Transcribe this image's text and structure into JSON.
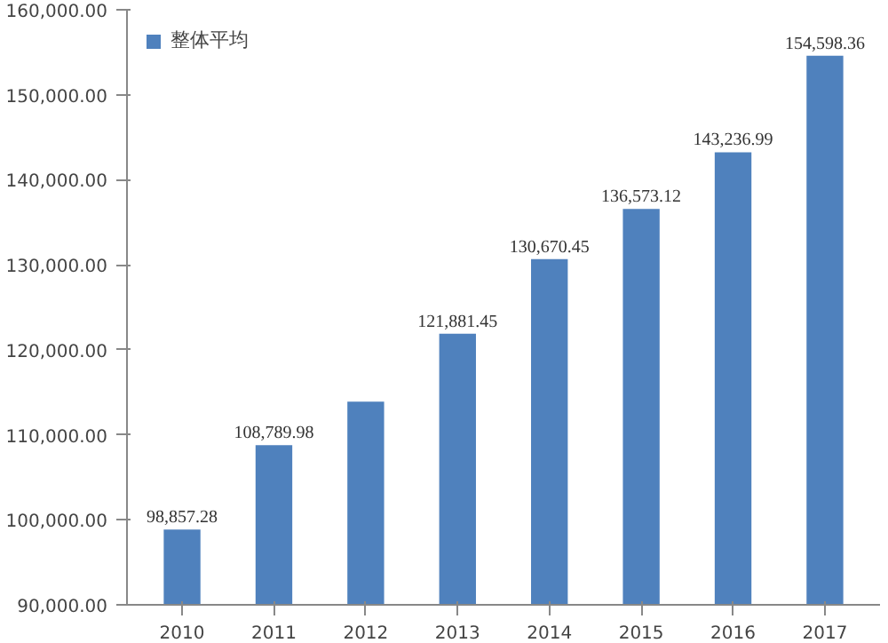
{
  "chart_data": {
    "type": "bar",
    "categories": [
      "2010",
      "2011",
      "2012",
      "2013",
      "2014",
      "2015",
      "2016",
      "2017"
    ],
    "series": [
      {
        "name": "整体平均",
        "color": "#4f81bd",
        "values": [
          98857.28,
          108789.98,
          113900,
          121881.45,
          130670.45,
          136573.12,
          143236.99,
          154598.36
        ],
        "value_labels": [
          "98,857.28",
          "108,789.98",
          null,
          "121,881.45",
          "130,670.45",
          "136,573.12",
          "143,236.99",
          "154,598.36"
        ]
      }
    ],
    "ylim": [
      90000,
      160000
    ],
    "yticks": [
      {
        "value": 90000,
        "label": "90,000.00"
      },
      {
        "value": 100000,
        "label": "100,000.00"
      },
      {
        "value": 110000,
        "label": "110,000.00"
      },
      {
        "value": 120000,
        "label": "120,000.00"
      },
      {
        "value": 130000,
        "label": "130,000.00"
      },
      {
        "value": 140000,
        "label": "140,000.00"
      },
      {
        "value": 150000,
        "label": "150,000.00"
      },
      {
        "value": 160000,
        "label": "160,000.00"
      }
    ],
    "legend": "top left",
    "grid": false
  }
}
